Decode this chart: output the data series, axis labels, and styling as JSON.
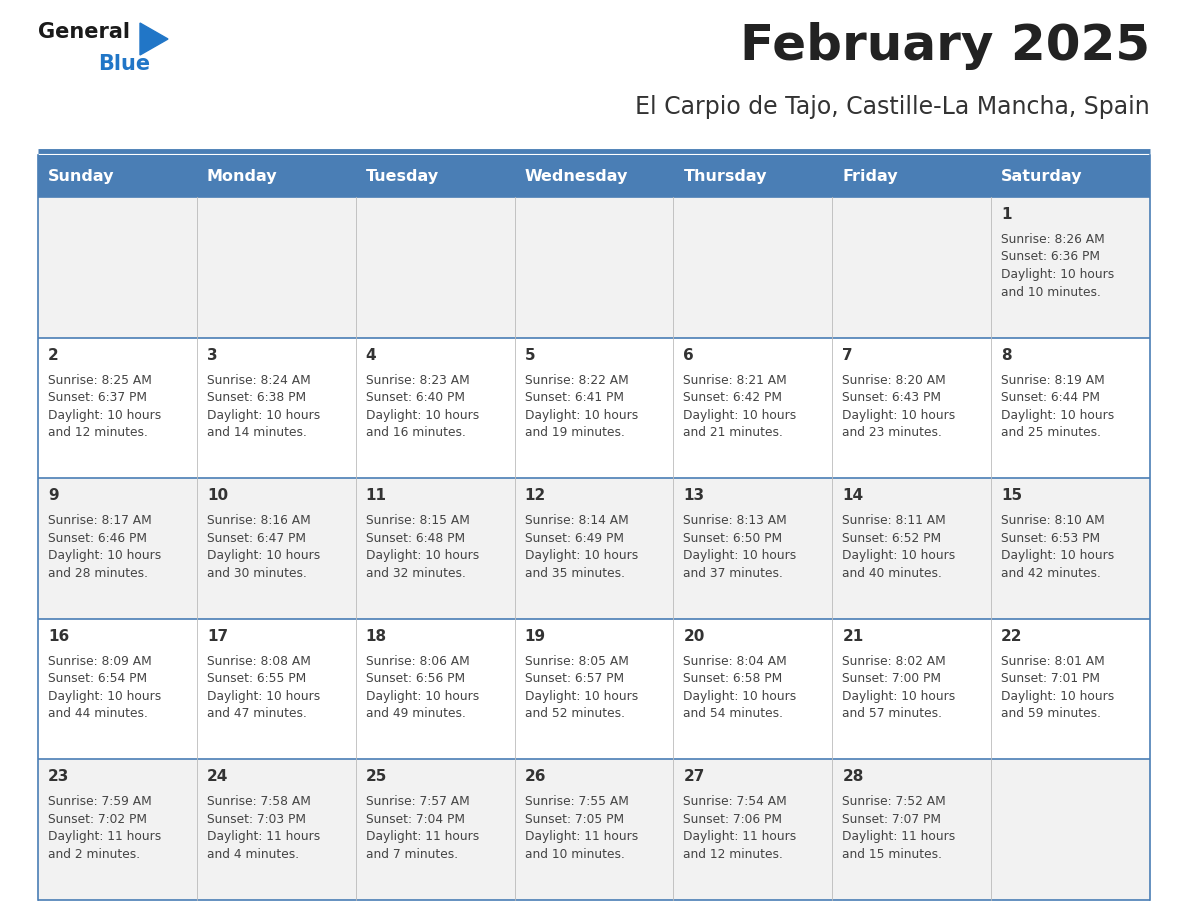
{
  "title": "February 2025",
  "subtitle": "El Carpio de Tajo, Castille-La Mancha, Spain",
  "days_of_week": [
    "Sunday",
    "Monday",
    "Tuesday",
    "Wednesday",
    "Thursday",
    "Friday",
    "Saturday"
  ],
  "header_bg": "#4a7eb5",
  "header_text": "#ffffff",
  "row_bg_even": "#f2f2f2",
  "row_bg_odd": "#ffffff",
  "text_color": "#444444",
  "day_num_color": "#333333",
  "line_color": "#4a7eb5",
  "calendar_data": [
    [
      null,
      null,
      null,
      null,
      null,
      null,
      {
        "day": 1,
        "sunrise": "8:26 AM",
        "sunset": "6:36 PM",
        "daylight": "10 hours and 10 minutes."
      }
    ],
    [
      {
        "day": 2,
        "sunrise": "8:25 AM",
        "sunset": "6:37 PM",
        "daylight": "10 hours and 12 minutes."
      },
      {
        "day": 3,
        "sunrise": "8:24 AM",
        "sunset": "6:38 PM",
        "daylight": "10 hours and 14 minutes."
      },
      {
        "day": 4,
        "sunrise": "8:23 AM",
        "sunset": "6:40 PM",
        "daylight": "10 hours and 16 minutes."
      },
      {
        "day": 5,
        "sunrise": "8:22 AM",
        "sunset": "6:41 PM",
        "daylight": "10 hours and 19 minutes."
      },
      {
        "day": 6,
        "sunrise": "8:21 AM",
        "sunset": "6:42 PM",
        "daylight": "10 hours and 21 minutes."
      },
      {
        "day": 7,
        "sunrise": "8:20 AM",
        "sunset": "6:43 PM",
        "daylight": "10 hours and 23 minutes."
      },
      {
        "day": 8,
        "sunrise": "8:19 AM",
        "sunset": "6:44 PM",
        "daylight": "10 hours and 25 minutes."
      }
    ],
    [
      {
        "day": 9,
        "sunrise": "8:17 AM",
        "sunset": "6:46 PM",
        "daylight": "10 hours and 28 minutes."
      },
      {
        "day": 10,
        "sunrise": "8:16 AM",
        "sunset": "6:47 PM",
        "daylight": "10 hours and 30 minutes."
      },
      {
        "day": 11,
        "sunrise": "8:15 AM",
        "sunset": "6:48 PM",
        "daylight": "10 hours and 32 minutes."
      },
      {
        "day": 12,
        "sunrise": "8:14 AM",
        "sunset": "6:49 PM",
        "daylight": "10 hours and 35 minutes."
      },
      {
        "day": 13,
        "sunrise": "8:13 AM",
        "sunset": "6:50 PM",
        "daylight": "10 hours and 37 minutes."
      },
      {
        "day": 14,
        "sunrise": "8:11 AM",
        "sunset": "6:52 PM",
        "daylight": "10 hours and 40 minutes."
      },
      {
        "day": 15,
        "sunrise": "8:10 AM",
        "sunset": "6:53 PM",
        "daylight": "10 hours and 42 minutes."
      }
    ],
    [
      {
        "day": 16,
        "sunrise": "8:09 AM",
        "sunset": "6:54 PM",
        "daylight": "10 hours and 44 minutes."
      },
      {
        "day": 17,
        "sunrise": "8:08 AM",
        "sunset": "6:55 PM",
        "daylight": "10 hours and 47 minutes."
      },
      {
        "day": 18,
        "sunrise": "8:06 AM",
        "sunset": "6:56 PM",
        "daylight": "10 hours and 49 minutes."
      },
      {
        "day": 19,
        "sunrise": "8:05 AM",
        "sunset": "6:57 PM",
        "daylight": "10 hours and 52 minutes."
      },
      {
        "day": 20,
        "sunrise": "8:04 AM",
        "sunset": "6:58 PM",
        "daylight": "10 hours and 54 minutes."
      },
      {
        "day": 21,
        "sunrise": "8:02 AM",
        "sunset": "7:00 PM",
        "daylight": "10 hours and 57 minutes."
      },
      {
        "day": 22,
        "sunrise": "8:01 AM",
        "sunset": "7:01 PM",
        "daylight": "10 hours and 59 minutes."
      }
    ],
    [
      {
        "day": 23,
        "sunrise": "7:59 AM",
        "sunset": "7:02 PM",
        "daylight": "11 hours and 2 minutes."
      },
      {
        "day": 24,
        "sunrise": "7:58 AM",
        "sunset": "7:03 PM",
        "daylight": "11 hours and 4 minutes."
      },
      {
        "day": 25,
        "sunrise": "7:57 AM",
        "sunset": "7:04 PM",
        "daylight": "11 hours and 7 minutes."
      },
      {
        "day": 26,
        "sunrise": "7:55 AM",
        "sunset": "7:05 PM",
        "daylight": "11 hours and 10 minutes."
      },
      {
        "day": 27,
        "sunrise": "7:54 AM",
        "sunset": "7:06 PM",
        "daylight": "11 hours and 12 minutes."
      },
      {
        "day": 28,
        "sunrise": "7:52 AM",
        "sunset": "7:07 PM",
        "daylight": "11 hours and 15 minutes."
      },
      null
    ]
  ],
  "logo_general_color": "#1a1a1a",
  "logo_blue_color": "#2176c7",
  "logo_triangle_color": "#2176c7",
  "fig_width": 11.88,
  "fig_height": 9.18,
  "dpi": 100
}
